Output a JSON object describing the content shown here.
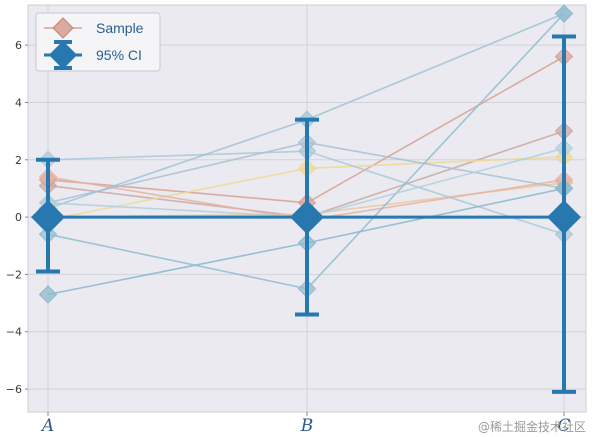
{
  "chart_data": {
    "type": "line",
    "categories": [
      "A",
      "B",
      "C"
    ],
    "ylim": [
      -6.8,
      7.4
    ],
    "yticks": [
      -6,
      -4,
      -2,
      0,
      2,
      4,
      6
    ],
    "grid": true,
    "legend": {
      "placement": "top-left",
      "entries": [
        "Sample",
        "95% CI"
      ]
    },
    "samples": [
      {
        "color": "#d9a090",
        "values": [
          1.3,
          0.5,
          5.6
        ]
      },
      {
        "color": "#c9a8a0",
        "values": [
          1.1,
          0.0,
          3.0
        ]
      },
      {
        "color": "#f0d890",
        "values": [
          -0.1,
          1.7,
          2.1
        ]
      },
      {
        "color": "#e6c8a0",
        "values": [
          0.0,
          0.1,
          1.2
        ]
      },
      {
        "color": "#e8b0a0",
        "values": [
          1.4,
          -0.1,
          1.3
        ]
      },
      {
        "color": "#a8c8d8",
        "values": [
          2.0,
          2.3,
          -0.6
        ]
      },
      {
        "color": "#a8c0d0",
        "values": [
          0.5,
          2.6,
          1.0
        ]
      },
      {
        "color": "#9ec4d4",
        "values": [
          0.3,
          3.4,
          7.1
        ]
      },
      {
        "color": "#8ab8cc",
        "values": [
          -2.7,
          -0.9,
          1.0
        ]
      },
      {
        "color": "#90bccf",
        "values": [
          -0.6,
          -2.5,
          7.1
        ]
      },
      {
        "color": "#b0d0dc",
        "values": [
          0.5,
          0.0,
          2.4
        ]
      }
    ],
    "ci": {
      "color": "#2878b0",
      "mean": [
        0.0,
        0.0,
        0.0
      ],
      "lower": [
        -1.9,
        -3.4,
        -6.1
      ],
      "upper": [
        2.0,
        3.4,
        6.3
      ]
    }
  },
  "watermark": "@稀土掘金技术社区"
}
